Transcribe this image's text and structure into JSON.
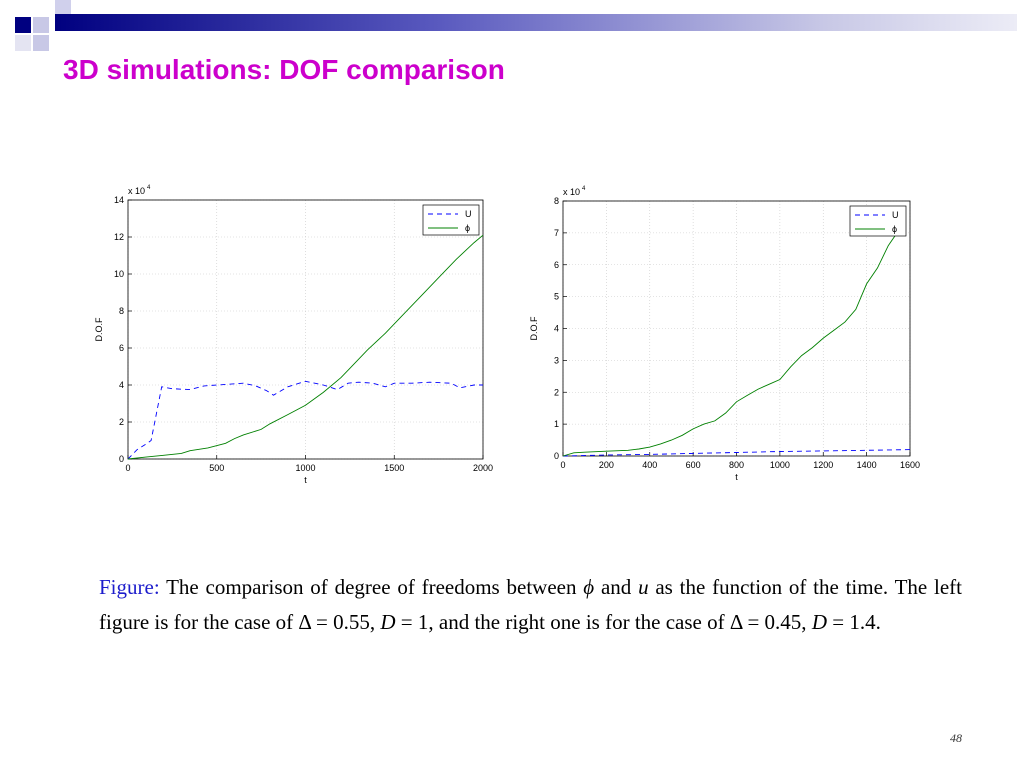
{
  "slide": {
    "title": "3D simulations: DOF comparison",
    "page_number": "48",
    "title_color": "#cc00cc",
    "accent_color": "#000080"
  },
  "caption": {
    "lead": "Figure:",
    "p1": " The comparison of degree of freedoms between ",
    "phi": "ϕ",
    "p2": " and ",
    "u": "u",
    "p3": " as the function of the time. The left figure is for the case of Δ = 0.55, ",
    "D1": "D",
    "p4": " = 1, and the right one is for the case of Δ = 0.45, ",
    "D2": "D",
    "p5": " = 1.4."
  },
  "chart_data": [
    {
      "type": "line",
      "xlabel": "t",
      "ylabel": "D.O.F",
      "y_multiplier": "x 10",
      "y_multiplier_exp": "4",
      "xlim": [
        0,
        2000
      ],
      "ylim": [
        0,
        14
      ],
      "xticks": [
        0,
        500,
        1000,
        1500,
        2000
      ],
      "yticks": [
        0,
        2,
        4,
        6,
        8,
        10,
        12,
        14
      ],
      "legend_position": "top-right",
      "series": [
        {
          "name": "U",
          "style": "dashed",
          "color": "#0000ff",
          "x": [
            0,
            50,
            100,
            130,
            190,
            250,
            350,
            430,
            500,
            580,
            650,
            720,
            780,
            820,
            900,
            1000,
            1100,
            1180,
            1240,
            1300,
            1380,
            1450,
            1500,
            1600,
            1700,
            1820,
            1870,
            1950,
            2000
          ],
          "y": [
            0,
            0.5,
            0.8,
            1.0,
            3.9,
            3.8,
            3.75,
            3.95,
            4.0,
            4.05,
            4.1,
            3.95,
            3.7,
            3.45,
            3.9,
            4.2,
            4.0,
            3.75,
            4.1,
            4.15,
            4.1,
            3.9,
            4.1,
            4.1,
            4.15,
            4.1,
            3.85,
            4.0,
            4.0
          ]
        },
        {
          "name": "ϕ",
          "style": "solid",
          "color": "#008000",
          "x": [
            0,
            100,
            200,
            300,
            350,
            450,
            550,
            600,
            650,
            750,
            800,
            900,
            1000,
            1100,
            1200,
            1250,
            1350,
            1450,
            1550,
            1650,
            1750,
            1850,
            1950,
            2000
          ],
          "y": [
            0,
            0.1,
            0.2,
            0.3,
            0.45,
            0.6,
            0.85,
            1.1,
            1.3,
            1.6,
            1.9,
            2.4,
            2.9,
            3.6,
            4.4,
            4.9,
            5.9,
            6.8,
            7.8,
            8.8,
            9.8,
            10.8,
            11.7,
            12.1
          ]
        }
      ]
    },
    {
      "type": "line",
      "xlabel": "t",
      "ylabel": "D.O.F",
      "y_multiplier": "x 10",
      "y_multiplier_exp": "4",
      "xlim": [
        0,
        1600
      ],
      "ylim": [
        0,
        8
      ],
      "xticks": [
        0,
        200,
        400,
        600,
        800,
        1000,
        1200,
        1400,
        1600
      ],
      "yticks": [
        0,
        1,
        2,
        3,
        4,
        5,
        6,
        7,
        8
      ],
      "legend_position": "top-right",
      "series": [
        {
          "name": "U",
          "style": "dashed",
          "color": "#0000ff",
          "x": [
            0,
            200,
            400,
            600,
            800,
            1000,
            1200,
            1400,
            1600
          ],
          "y": [
            0.0,
            0.03,
            0.05,
            0.08,
            0.11,
            0.14,
            0.16,
            0.18,
            0.2
          ]
        },
        {
          "name": "ϕ",
          "style": "solid",
          "color": "#008000",
          "x": [
            0,
            50,
            100,
            200,
            300,
            350,
            400,
            450,
            500,
            550,
            600,
            650,
            700,
            750,
            800,
            850,
            900,
            950,
            1000,
            1050,
            1100,
            1150,
            1200,
            1250,
            1300,
            1350,
            1400,
            1450,
            1500,
            1550
          ],
          "y": [
            0.0,
            0.1,
            0.12,
            0.15,
            0.18,
            0.22,
            0.28,
            0.38,
            0.5,
            0.65,
            0.85,
            1.0,
            1.1,
            1.35,
            1.7,
            1.9,
            2.1,
            2.25,
            2.4,
            2.8,
            3.15,
            3.4,
            3.7,
            3.95,
            4.2,
            4.6,
            5.4,
            5.9,
            6.6,
            7.1
          ]
        }
      ]
    }
  ]
}
